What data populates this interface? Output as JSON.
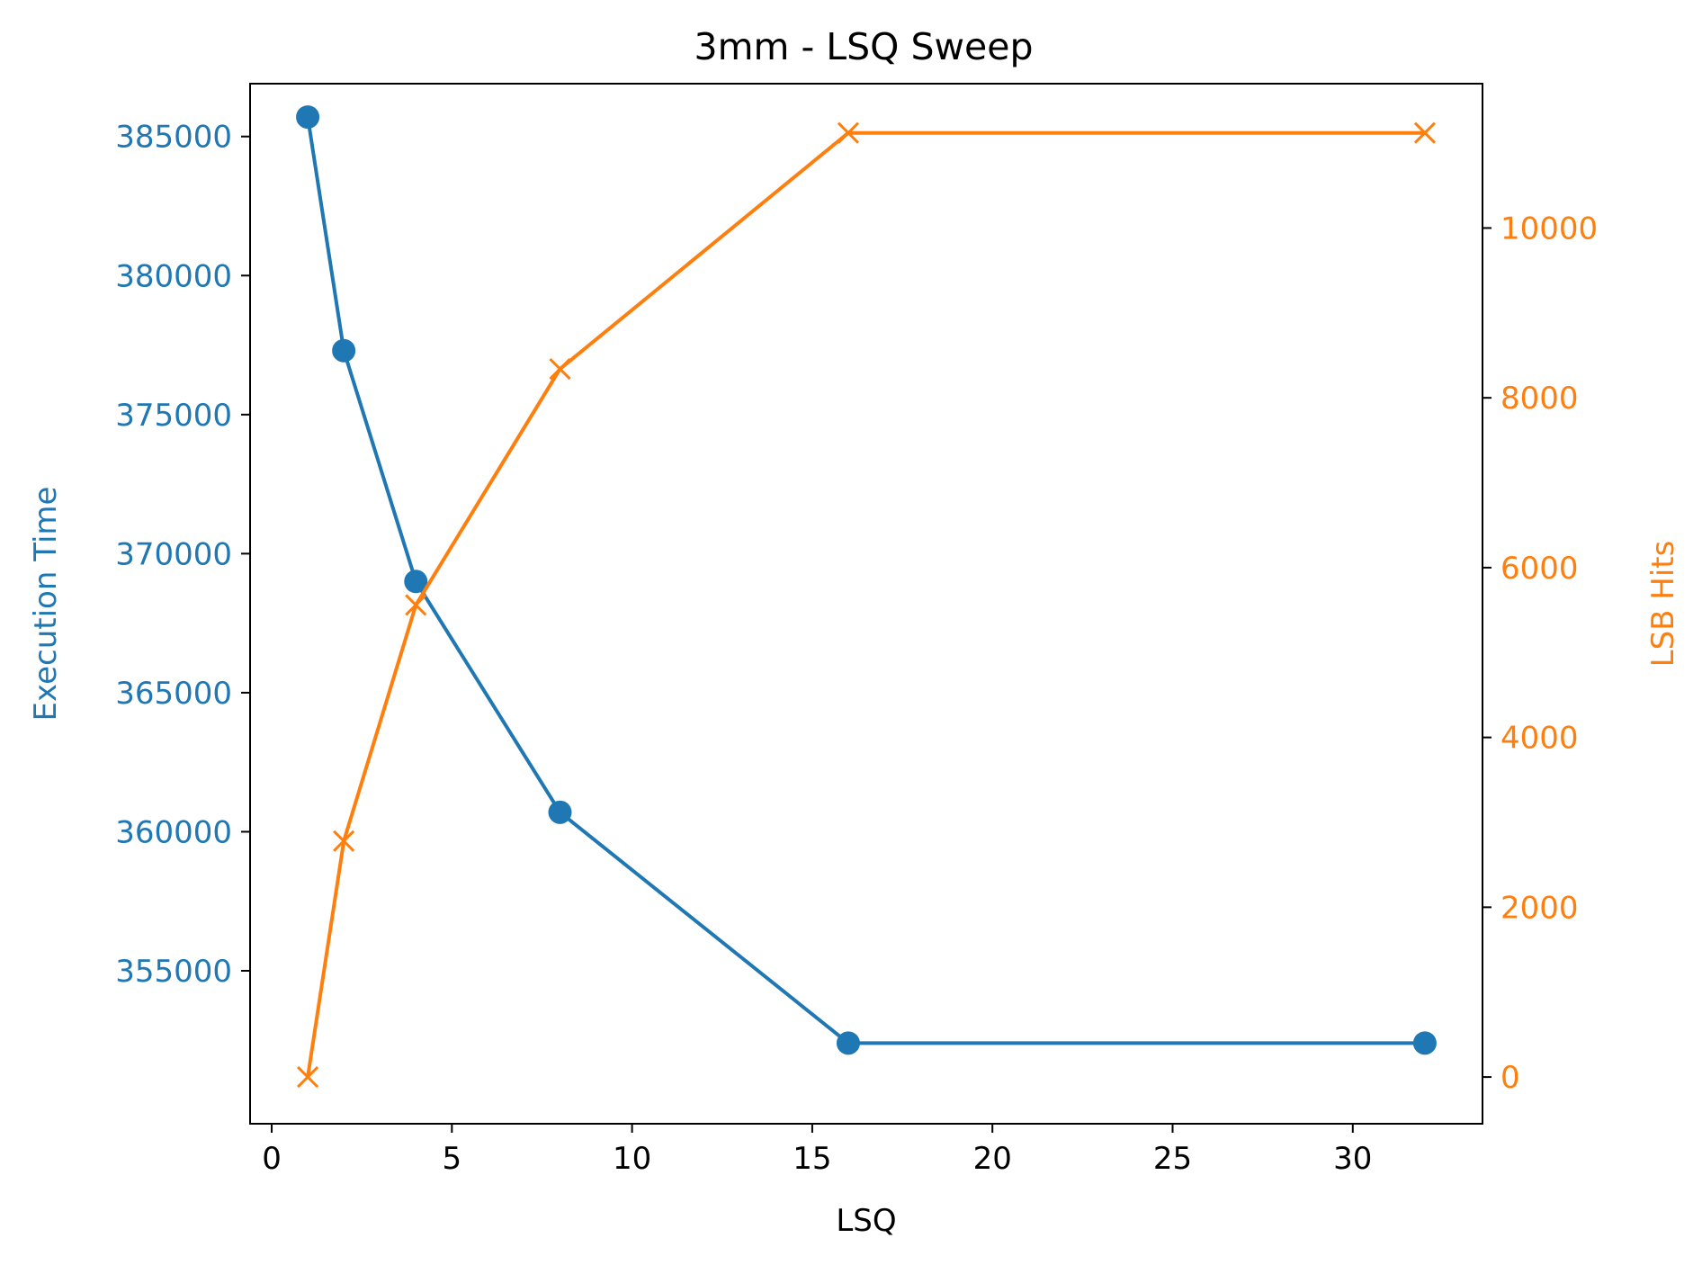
{
  "chart_data": {
    "type": "line",
    "title": "3mm - LSQ Sweep",
    "xlabel": "LSQ",
    "ylabel_left": "Execution Time",
    "ylabel_right": "LSB Hits",
    "x": [
      1,
      2,
      4,
      8,
      16,
      32
    ],
    "xlim": [
      -0.6,
      33.6
    ],
    "ylim_left": [
      349500,
      386900
    ],
    "ylim_right": [
      -550,
      11700
    ],
    "xticks": [
      0,
      5,
      10,
      15,
      20,
      25,
      30
    ],
    "yticks_left": [
      355000,
      360000,
      365000,
      370000,
      375000,
      380000,
      385000
    ],
    "yticks_right": [
      0,
      2000,
      4000,
      6000,
      8000,
      10000
    ],
    "grid": false,
    "series": [
      {
        "axis": "left",
        "color": "#1f77b4",
        "marker": "circle",
        "values": [
          385700,
          377300,
          369000,
          360700,
          352400,
          352400
        ]
      },
      {
        "axis": "right",
        "color": "#ff7f0e",
        "marker": "x",
        "values": [
          0,
          2780,
          5560,
          8340,
          11120,
          11120
        ]
      }
    ]
  }
}
